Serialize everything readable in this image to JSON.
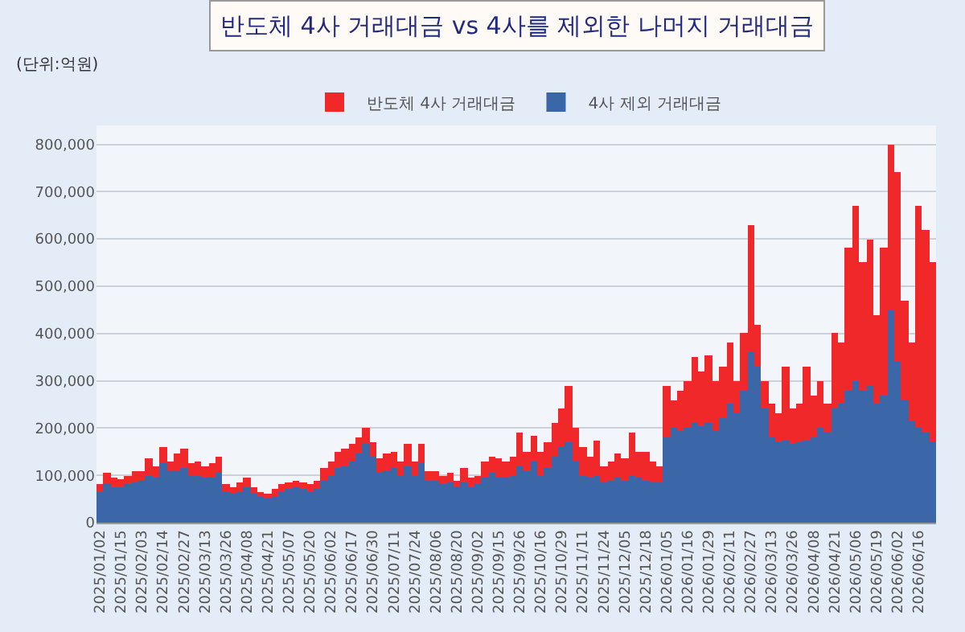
{
  "chart_data": {
    "type": "bar",
    "stacked": true,
    "title": "반도체 4사 거래대금 vs 4사를 제외한 나머지 거래대금",
    "annotations": [
      "(단위:억원)"
    ],
    "categories": [
      "2025/01/02",
      null,
      null,
      "2025/01/15",
      null,
      null,
      "2025/02/03",
      null,
      null,
      "2025/02/14",
      null,
      null,
      "2025/02/27",
      null,
      null,
      "2025/03/13",
      null,
      null,
      "2025/03/26",
      null,
      null,
      "2025/04/08",
      null,
      null,
      "2025/04/21",
      null,
      null,
      "2025/05/07",
      null,
      null,
      "2025/05/20",
      null,
      null,
      "2025/06/02",
      null,
      null,
      "2025/06/17",
      null,
      null,
      "2025/06/30",
      null,
      null,
      "2025/07/11",
      null,
      null,
      "2025/07/24",
      null,
      null,
      "2025/08/06",
      null,
      null,
      "2025/08/20",
      null,
      null,
      "2025/09/02",
      null,
      null,
      "2025/09/15",
      null,
      null,
      "2025/09/26",
      null,
      null,
      "2025/10/16",
      null,
      null,
      "2025/10/29",
      null,
      null,
      "2025/11/11",
      null,
      null,
      "2025/11/24",
      null,
      null,
      "2025/12/05",
      null,
      null,
      "2025/12/18",
      null,
      null,
      "2026/01/05",
      null,
      null,
      "2026/01/16",
      null,
      null,
      "2026/01/29",
      null,
      null,
      "2026/02/11",
      null,
      null,
      "2026/02/27",
      null,
      null,
      "2026/03/13",
      null,
      null,
      "2026/03/26",
      null,
      null,
      "2026/04/08",
      null,
      null,
      "2026/04/21",
      null,
      null,
      "2026/05/06",
      null,
      null,
      "2026/05/19",
      null,
      null,
      "2026/06/02",
      null,
      null,
      "2026/06/16",
      null,
      null
    ],
    "series": [
      {
        "name": "4사 제외 거래대금",
        "color": "#3b67a8",
        "values": [
          65000,
          80000,
          75000,
          75000,
          80000,
          85000,
          90000,
          100000,
          95000,
          125000,
          110000,
          110000,
          115000,
          100000,
          100000,
          95000,
          95000,
          105000,
          65000,
          60000,
          65000,
          75000,
          60000,
          55000,
          50000,
          55000,
          65000,
          70000,
          75000,
          70000,
          65000,
          70000,
          90000,
          100000,
          115000,
          120000,
          130000,
          145000,
          165000,
          140000,
          105000,
          110000,
          115000,
          100000,
          120000,
          100000,
          125000,
          90000,
          90000,
          80000,
          85000,
          75000,
          85000,
          75000,
          80000,
          95000,
          105000,
          95000,
          95000,
          100000,
          120000,
          110000,
          130000,
          100000,
          115000,
          140000,
          160000,
          170000,
          130000,
          100000,
          95000,
          100000,
          85000,
          90000,
          95000,
          90000,
          100000,
          95000,
          90000,
          85000,
          85000,
          180000,
          200000,
          195000,
          200000,
          210000,
          205000,
          210000,
          195000,
          220000,
          250000,
          230000,
          280000,
          360000,
          330000,
          240000,
          180000,
          170000,
          175000,
          165000,
          170000,
          175000,
          180000,
          200000,
          190000,
          240000,
          250000,
          280000,
          300000,
          280000,
          290000,
          250000,
          270000,
          450000,
          340000,
          260000,
          215000,
          200000,
          190000,
          170000
        ]
      },
      {
        "name": "반도체 4사 거래대금",
        "color": "#f0282a",
        "values": [
          15000,
          25000,
          20000,
          17000,
          20000,
          25000,
          20000,
          35000,
          25000,
          35000,
          20000,
          35000,
          40000,
          25000,
          30000,
          25000,
          30000,
          35000,
          15000,
          15000,
          20000,
          20000,
          15000,
          10000,
          10000,
          15000,
          15000,
          15000,
          15000,
          15000,
          15000,
          20000,
          25000,
          30000,
          35000,
          35000,
          35000,
          35000,
          35000,
          30000,
          30000,
          35000,
          35000,
          30000,
          45000,
          30000,
          40000,
          20000,
          20000,
          20000,
          20000,
          15000,
          30000,
          20000,
          20000,
          35000,
          35000,
          40000,
          35000,
          40000,
          70000,
          40000,
          55000,
          50000,
          55000,
          70000,
          80000,
          120000,
          70000,
          60000,
          45000,
          75000,
          35000,
          40000,
          50000,
          45000,
          90000,
          55000,
          60000,
          45000,
          35000,
          110000,
          60000,
          85000,
          100000,
          140000,
          115000,
          145000,
          105000,
          110000,
          130000,
          70000,
          120000,
          270000,
          90000,
          60000,
          70000,
          60000,
          155000,
          75000,
          80000,
          155000,
          90000,
          100000,
          60000,
          160000,
          130000,
          300000,
          370000,
          270000,
          310000,
          190000,
          310000,
          350000,
          400000,
          210000,
          165000,
          470000,
          430000,
          380000
        ]
      }
    ],
    "ylim": [
      0,
      840000
    ],
    "yticks": [
      {
        "value": 0,
        "label": "0"
      },
      {
        "value": 100000,
        "label": "100,000"
      },
      {
        "value": 200000,
        "label": "200,000"
      },
      {
        "value": 300000,
        "label": "300,000"
      },
      {
        "value": 400000,
        "label": "400,000"
      },
      {
        "value": 500000,
        "label": "500,000"
      },
      {
        "value": 600000,
        "label": "600,000"
      },
      {
        "value": 700000,
        "label": "700,000"
      },
      {
        "value": 800000,
        "label": "800,000"
      }
    ],
    "grid": "y",
    "legend": "top"
  }
}
